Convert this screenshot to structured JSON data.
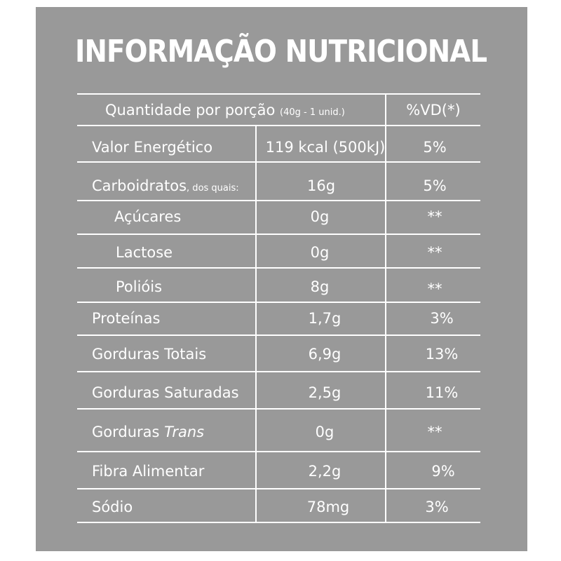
{
  "title": "INFORMAÇÃO NUTRICIONAL",
  "header": {
    "quantity_label": "Quantidade por porção",
    "portion": "(40g - 1 unid.)",
    "dv_label": "%VD(*)"
  },
  "rows": [
    {
      "name": "Valor Energético",
      "suffix": "",
      "amount": "119 kcal (500kJ)",
      "dv": "5%"
    },
    {
      "name": "Carboidratos",
      "suffix": ", dos quais:",
      "amount": "16g",
      "dv": "5%"
    },
    {
      "name": "Açúcares",
      "suffix": "",
      "amount": "0g",
      "dv": "**"
    },
    {
      "name": "Lactose",
      "suffix": "",
      "amount": "0g",
      "dv": "**"
    },
    {
      "name": "Polióis",
      "suffix": "",
      "amount": "8g",
      "dv": "**"
    },
    {
      "name": "Proteínas",
      "suffix": "",
      "amount": "1,7g",
      "dv": "3%"
    },
    {
      "name": "Gorduras Totais",
      "suffix": "",
      "amount": "6,9g",
      "dv": "13%"
    },
    {
      "name": "Gorduras Saturadas",
      "suffix": "",
      "amount": "2,5g",
      "dv": "11%"
    },
    {
      "name": "Gorduras ",
      "suffix": "Trans",
      "amount": "0g",
      "dv": "**"
    },
    {
      "name": "Fibra Alimentar",
      "suffix": "",
      "amount": "2,2g",
      "dv": "9%"
    },
    {
      "name": "Sódio",
      "suffix": "",
      "amount": "78mg",
      "dv": "3%"
    }
  ],
  "colors": {
    "panel": "#999999",
    "text": "#ffffff"
  }
}
